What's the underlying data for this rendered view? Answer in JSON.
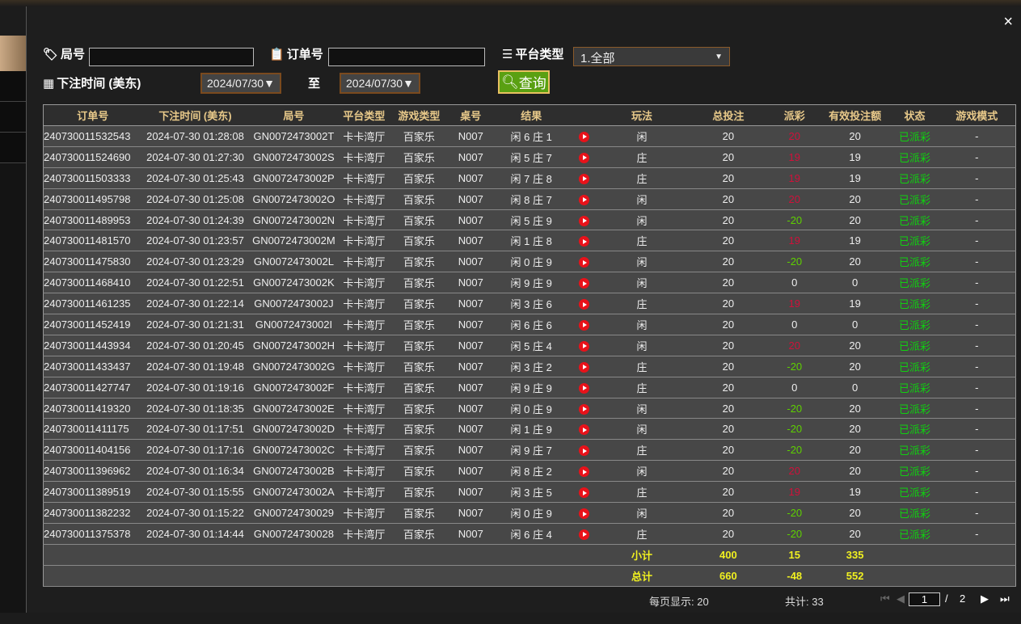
{
  "close_icon": "×",
  "filters": {
    "round_label": "局号",
    "round_value": "",
    "order_label": "订单号",
    "order_value": "",
    "platform_label": "平台类型",
    "platform_value": "1.全部",
    "time_label": "下注时间 (美东)",
    "date_from": "2024/07/30▼",
    "to_label": "至",
    "date_to": "2024/07/30▼",
    "query_label": "查询"
  },
  "columns": [
    "订单号",
    "下注时间 (美东)",
    "局号",
    "平台类型",
    "游戏类型",
    "桌号",
    "结果",
    "",
    "玩法",
    "总投注",
    "派彩",
    "有效投注额",
    "状态",
    "游戏模式"
  ],
  "rows": [
    [
      "240730011532543",
      "2024-07-30 01:28:08",
      "GN0072473002T",
      "卡卡湾厅",
      "百家乐",
      "N007",
      "闲 6 庄 1",
      "闲",
      "20",
      "20",
      "20",
      "已派彩",
      "-"
    ],
    [
      "240730011524690",
      "2024-07-30 01:27:30",
      "GN0072473002S",
      "卡卡湾厅",
      "百家乐",
      "N007",
      "闲 5 庄 7",
      "庄",
      "20",
      "19",
      "19",
      "已派彩",
      "-"
    ],
    [
      "240730011503333",
      "2024-07-30 01:25:43",
      "GN0072473002P",
      "卡卡湾厅",
      "百家乐",
      "N007",
      "闲 7 庄 8",
      "庄",
      "20",
      "19",
      "19",
      "已派彩",
      "-"
    ],
    [
      "240730011495798",
      "2024-07-30 01:25:08",
      "GN0072473002O",
      "卡卡湾厅",
      "百家乐",
      "N007",
      "闲 8 庄 7",
      "闲",
      "20",
      "20",
      "20",
      "已派彩",
      "-"
    ],
    [
      "240730011489953",
      "2024-07-30 01:24:39",
      "GN0072473002N",
      "卡卡湾厅",
      "百家乐",
      "N007",
      "闲 5 庄 9",
      "闲",
      "20",
      "-20",
      "20",
      "已派彩",
      "-"
    ],
    [
      "240730011481570",
      "2024-07-30 01:23:57",
      "GN0072473002M",
      "卡卡湾厅",
      "百家乐",
      "N007",
      "闲 1 庄 8",
      "庄",
      "20",
      "19",
      "19",
      "已派彩",
      "-"
    ],
    [
      "240730011475830",
      "2024-07-30 01:23:29",
      "GN0072473002L",
      "卡卡湾厅",
      "百家乐",
      "N007",
      "闲 0 庄 9",
      "闲",
      "20",
      "-20",
      "20",
      "已派彩",
      "-"
    ],
    [
      "240730011468410",
      "2024-07-30 01:22:51",
      "GN0072473002K",
      "卡卡湾厅",
      "百家乐",
      "N007",
      "闲 9 庄 9",
      "闲",
      "20",
      "0",
      "0",
      "已派彩",
      "-"
    ],
    [
      "240730011461235",
      "2024-07-30 01:22:14",
      "GN0072473002J",
      "卡卡湾厅",
      "百家乐",
      "N007",
      "闲 3 庄 6",
      "庄",
      "20",
      "19",
      "19",
      "已派彩",
      "-"
    ],
    [
      "240730011452419",
      "2024-07-30 01:21:31",
      "GN0072473002I",
      "卡卡湾厅",
      "百家乐",
      "N007",
      "闲 6 庄 6",
      "闲",
      "20",
      "0",
      "0",
      "已派彩",
      "-"
    ],
    [
      "240730011443934",
      "2024-07-30 01:20:45",
      "GN0072473002H",
      "卡卡湾厅",
      "百家乐",
      "N007",
      "闲 5 庄 4",
      "闲",
      "20",
      "20",
      "20",
      "已派彩",
      "-"
    ],
    [
      "240730011433437",
      "2024-07-30 01:19:48",
      "GN0072473002G",
      "卡卡湾厅",
      "百家乐",
      "N007",
      "闲 3 庄 2",
      "庄",
      "20",
      "-20",
      "20",
      "已派彩",
      "-"
    ],
    [
      "240730011427747",
      "2024-07-30 01:19:16",
      "GN0072473002F",
      "卡卡湾厅",
      "百家乐",
      "N007",
      "闲 9 庄 9",
      "庄",
      "20",
      "0",
      "0",
      "已派彩",
      "-"
    ],
    [
      "240730011419320",
      "2024-07-30 01:18:35",
      "GN0072473002E",
      "卡卡湾厅",
      "百家乐",
      "N007",
      "闲 0 庄 9",
      "闲",
      "20",
      "-20",
      "20",
      "已派彩",
      "-"
    ],
    [
      "240730011411175",
      "2024-07-30 01:17:51",
      "GN0072473002D",
      "卡卡湾厅",
      "百家乐",
      "N007",
      "闲 1 庄 9",
      "闲",
      "20",
      "-20",
      "20",
      "已派彩",
      "-"
    ],
    [
      "240730011404156",
      "2024-07-30 01:17:16",
      "GN0072473002C",
      "卡卡湾厅",
      "百家乐",
      "N007",
      "闲 9 庄 7",
      "庄",
      "20",
      "-20",
      "20",
      "已派彩",
      "-"
    ],
    [
      "240730011396962",
      "2024-07-30 01:16:34",
      "GN0072473002B",
      "卡卡湾厅",
      "百家乐",
      "N007",
      "闲 8 庄 2",
      "闲",
      "20",
      "20",
      "20",
      "已派彩",
      "-"
    ],
    [
      "240730011389519",
      "2024-07-30 01:15:55",
      "GN0072473002A",
      "卡卡湾厅",
      "百家乐",
      "N007",
      "闲 3 庄 5",
      "庄",
      "20",
      "19",
      "19",
      "已派彩",
      "-"
    ],
    [
      "240730011382232",
      "2024-07-30 01:15:22",
      "GN00724730029",
      "卡卡湾厅",
      "百家乐",
      "N007",
      "闲 0 庄 9",
      "闲",
      "20",
      "-20",
      "20",
      "已派彩",
      "-"
    ],
    [
      "240730011375378",
      "2024-07-30 01:14:44",
      "GN00724730028",
      "卡卡湾厅",
      "百家乐",
      "N007",
      "闲 6 庄 4",
      "庄",
      "20",
      "-20",
      "20",
      "已派彩",
      "-"
    ]
  ],
  "subtotal": {
    "label": "小计",
    "bet": "400",
    "payout": "15",
    "valid": "335"
  },
  "total": {
    "label": "总计",
    "bet": "660",
    "payout": "-48",
    "valid": "552"
  },
  "footer": {
    "per_page": "每页显示: 20",
    "count": "共计: 33",
    "page": "1",
    "sep": "/",
    "pages": "2"
  },
  "colors": {
    "payout_positive": "#d0103a",
    "payout_negative": "#5ed000",
    "status": "#10d010",
    "totals": "#f0f020"
  }
}
